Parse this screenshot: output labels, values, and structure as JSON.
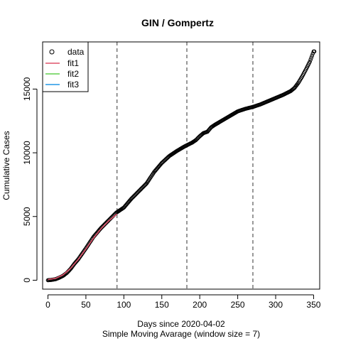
{
  "chart_data": {
    "type": "scatter",
    "title": "GIN / Gompertz",
    "xlabel": "Days since 2020-04-02",
    "sublabel": "Simple Moving Avarage (window size = 7)",
    "ylabel": "Cumulative Cases",
    "xlim": [
      -7,
      358
    ],
    "ylim": [
      -700,
      18700
    ],
    "x_ticks": [
      0,
      50,
      100,
      150,
      200,
      250,
      300,
      350
    ],
    "y_ticks": [
      0,
      5000,
      10000,
      15000
    ],
    "x_tick_labels": [
      "0",
      "50",
      "100",
      "150",
      "200",
      "250",
      "300",
      "350"
    ],
    "y_tick_labels": [
      "0",
      "5000",
      "10000",
      "15000"
    ],
    "vlines": [
      91,
      183,
      270
    ],
    "legend": {
      "position": "top-left",
      "entries": [
        {
          "label": "data",
          "symbol": "circle",
          "color": "#000000"
        },
        {
          "label": "fit1",
          "symbol": "line",
          "color": "#DF536B"
        },
        {
          "label": "fit2",
          "symbol": "line",
          "color": "#61D04F"
        },
        {
          "label": "fit3",
          "symbol": "line",
          "color": "#2297E6"
        }
      ]
    },
    "data_series": {
      "name": "data",
      "color": "#000000",
      "anchors": [
        [
          0,
          0
        ],
        [
          5,
          30
        ],
        [
          10,
          80
        ],
        [
          15,
          200
        ],
        [
          20,
          350
        ],
        [
          25,
          580
        ],
        [
          30,
          900
        ],
        [
          35,
          1300
        ],
        [
          40,
          1650
        ],
        [
          50,
          2500
        ],
        [
          60,
          3400
        ],
        [
          70,
          4100
        ],
        [
          80,
          4700
        ],
        [
          85,
          5000
        ],
        [
          90,
          5300
        ],
        [
          95,
          5500
        ],
        [
          100,
          5700
        ],
        [
          110,
          6400
        ],
        [
          120,
          7000
        ],
        [
          130,
          7600
        ],
        [
          140,
          8500
        ],
        [
          150,
          9200
        ],
        [
          160,
          9750
        ],
        [
          170,
          10150
        ],
        [
          180,
          10500
        ],
        [
          190,
          10800
        ],
        [
          195,
          11000
        ],
        [
          200,
          11300
        ],
        [
          205,
          11550
        ],
        [
          210,
          11650
        ],
        [
          215,
          12000
        ],
        [
          220,
          12200
        ],
        [
          230,
          12550
        ],
        [
          240,
          12900
        ],
        [
          250,
          13250
        ],
        [
          260,
          13450
        ],
        [
          270,
          13600
        ],
        [
          280,
          13800
        ],
        [
          290,
          14050
        ],
        [
          300,
          14300
        ],
        [
          310,
          14550
        ],
        [
          320,
          14850
        ],
        [
          325,
          15100
        ],
        [
          330,
          15500
        ],
        [
          335,
          16000
        ],
        [
          340,
          16550
        ],
        [
          345,
          17150
        ],
        [
          350,
          17950
        ]
      ],
      "x_start": 0,
      "x_end": 351
    },
    "fits": [
      {
        "name": "fit1",
        "color": "#DF536B",
        "x_range": [
          0,
          91
        ],
        "points": [
          [
            0,
            50
          ],
          [
            10,
            150
          ],
          [
            20,
            420
          ],
          [
            30,
            940
          ],
          [
            40,
            1640
          ],
          [
            50,
            2450
          ],
          [
            60,
            3300
          ],
          [
            70,
            4050
          ],
          [
            80,
            4660
          ],
          [
            91,
            5200
          ]
        ]
      },
      {
        "name": "fit2",
        "color": "#61D04F",
        "x_range": [
          91,
          183
        ],
        "points": []
      },
      {
        "name": "fit3",
        "color": "#2297E6",
        "x_range": [
          183,
          270
        ],
        "points": []
      }
    ]
  }
}
